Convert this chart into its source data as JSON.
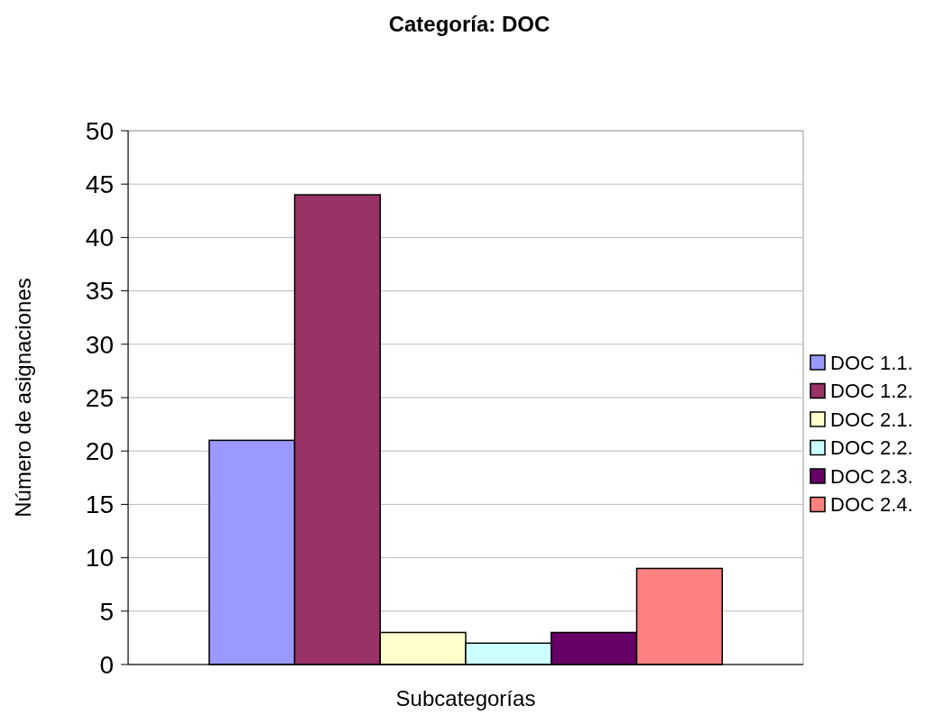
{
  "chart_data": {
    "type": "bar",
    "title": "Categoría: DOC",
    "xlabel": "Subcategorías",
    "ylabel": "Número de asignaciones",
    "categories": [
      null
    ],
    "series": [
      {
        "name": "DOC 1.1.",
        "color": "#9999ff",
        "values": [
          21
        ]
      },
      {
        "name": "DOC 1.2.",
        "color": "#993366",
        "values": [
          44
        ]
      },
      {
        "name": "DOC 2.1.",
        "color": "#ffffcc",
        "values": [
          3
        ]
      },
      {
        "name": "DOC 2.2.",
        "color": "#ccffff",
        "values": [
          2
        ]
      },
      {
        "name": "DOC 2.3.",
        "color": "#660066",
        "values": [
          3
        ]
      },
      {
        "name": "DOC 2.4.",
        "color": "#ff8080",
        "values": [
          9
        ]
      }
    ],
    "ylim": [
      0,
      50
    ],
    "yticks": [
      0,
      5,
      10,
      15,
      20,
      25,
      30,
      35,
      40,
      45,
      50
    ],
    "grid": "y",
    "legend": "right"
  }
}
